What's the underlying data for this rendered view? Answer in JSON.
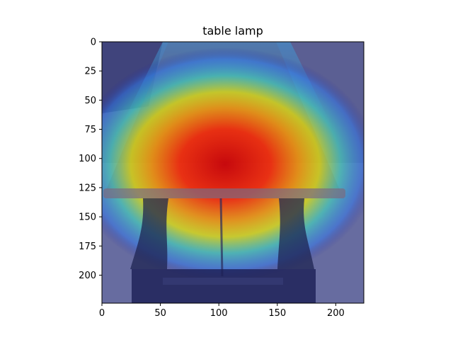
{
  "chart_data": {
    "type": "heatmap",
    "title": "table lamp",
    "xlabel": "",
    "ylabel": "",
    "xlim": [
      0,
      224
    ],
    "ylim": [
      224,
      0
    ],
    "xticks": [
      0,
      50,
      100,
      150,
      200
    ],
    "yticks": [
      0,
      25,
      50,
      75,
      100,
      125,
      150,
      175,
      200
    ],
    "colormap": "jet",
    "grid": false,
    "hotspot_center": [
      105,
      115
    ],
    "hotspot_radius": [
      85,
      45
    ],
    "colors": {
      "background_image": "#5a5f8f",
      "tabletop": "#8b3a2b",
      "legs": "#1e2450"
    }
  }
}
